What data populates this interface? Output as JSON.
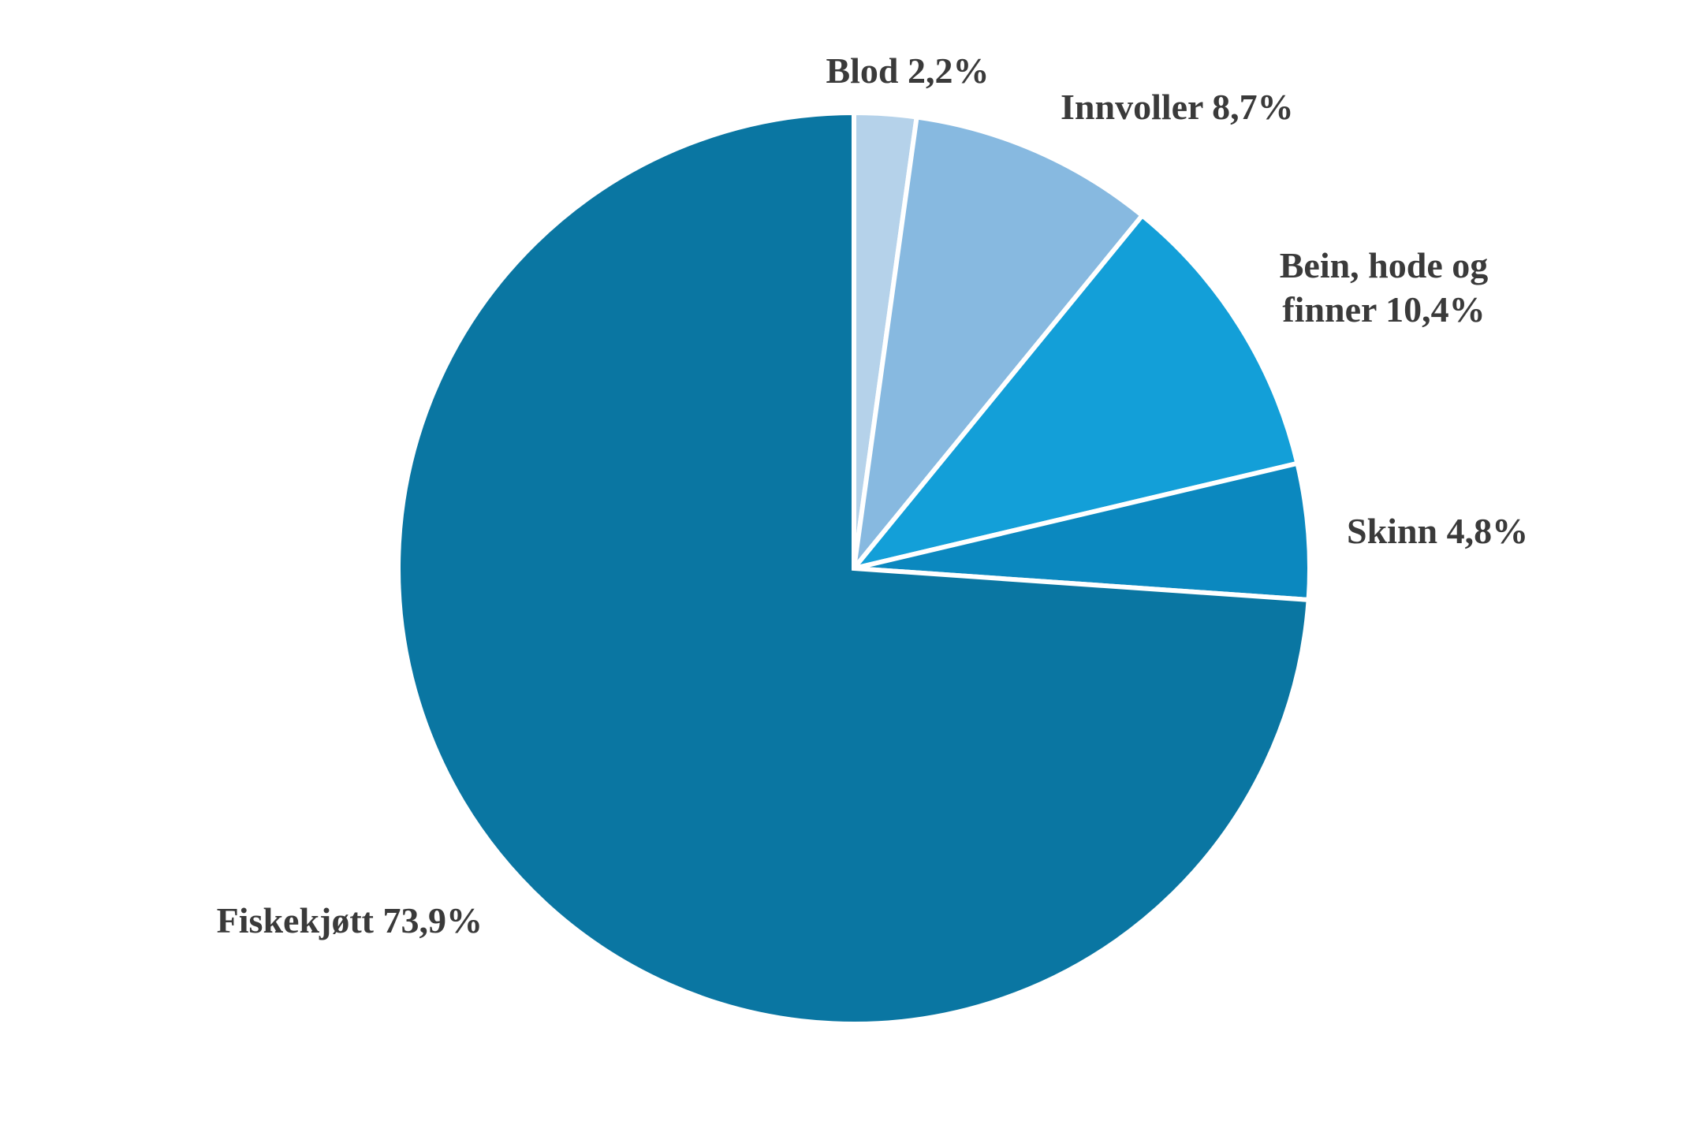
{
  "chart_data": {
    "type": "pie",
    "title": "",
    "start_angle_deg": 0,
    "direction": "clockwise",
    "slices": [
      {
        "name": "Blod",
        "value": 2.2,
        "label": "Blod 2,2%",
        "color": "#b5d2ea"
      },
      {
        "name": "Innvoller",
        "value": 8.7,
        "label": "Innvoller 8,7%",
        "color": "#87b9e0"
      },
      {
        "name": "Bein, hode og finner",
        "value": 10.4,
        "label": [
          "Bein, hode og",
          "finner 10,4%"
        ],
        "color": "#139fd8"
      },
      {
        "name": "Skinn",
        "value": 4.8,
        "label": "Skinn 4,8%",
        "color": "#0b88bf"
      },
      {
        "name": "Fiskekjøtt",
        "value": 73.9,
        "label": "Fiskekjøtt 73,9%",
        "color": "#0a76a2"
      }
    ]
  }
}
